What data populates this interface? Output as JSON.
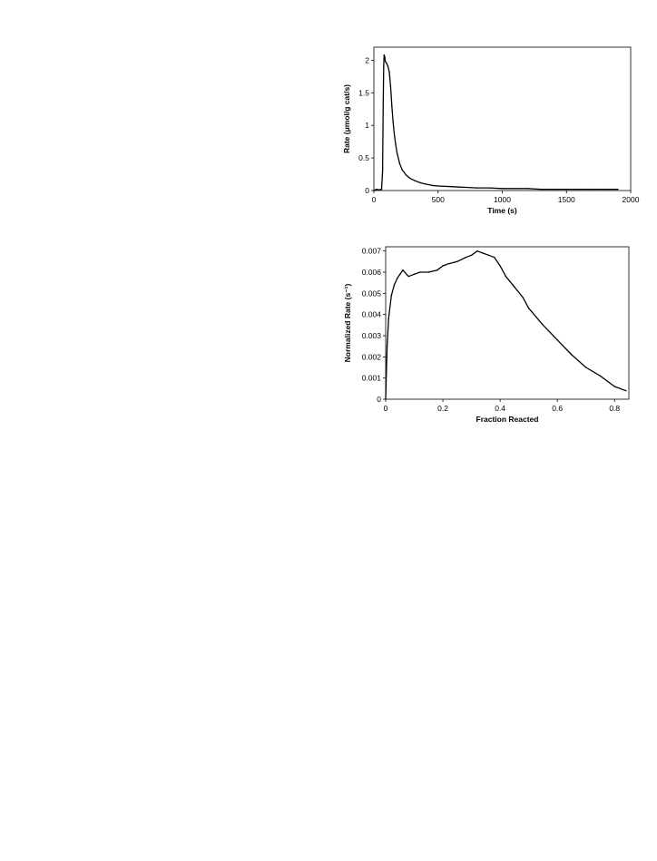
{
  "chart_data": [
    {
      "type": "line",
      "xlabel": "Time (s)",
      "ylabel": "Rate (μmol/g cat/s)",
      "xlim": [
        0,
        2000
      ],
      "ylim": [
        0,
        2.2
      ],
      "xticks": [
        "0",
        "500",
        "1000",
        "1500",
        "2000"
      ],
      "yticks": [
        "0",
        "0.5",
        "1",
        "1.5",
        "2"
      ],
      "grid": false,
      "legend": "none",
      "line_color": "#000000",
      "series": [
        {
          "x": [
            0,
            20,
            40,
            60,
            68,
            72,
            76,
            80,
            85,
            90,
            100,
            110,
            120,
            130,
            140,
            150,
            160,
            170,
            180,
            200,
            220,
            250,
            280,
            320,
            360,
            400,
            450,
            500,
            600,
            700,
            800,
            900,
            1000,
            1100,
            1200,
            1300,
            1400,
            1500,
            1600,
            1700,
            1800,
            1900
          ],
          "y": [
            0.0,
            0.02,
            0.01,
            0.02,
            0.3,
            1.2,
            1.9,
            2.08,
            2.05,
            1.98,
            1.95,
            1.9,
            1.82,
            1.6,
            1.3,
            1.05,
            0.85,
            0.7,
            0.58,
            0.42,
            0.32,
            0.24,
            0.19,
            0.15,
            0.12,
            0.1,
            0.08,
            0.07,
            0.06,
            0.05,
            0.04,
            0.04,
            0.03,
            0.03,
            0.03,
            0.02,
            0.02,
            0.02,
            0.02,
            0.02,
            0.02,
            0.02
          ]
        }
      ]
    },
    {
      "type": "line",
      "xlabel": "Fraction Reacted",
      "ylabel": "Normalized Rate (s⁻¹)",
      "xlim": [
        0,
        0.85
      ],
      "ylim": [
        0,
        0.0072
      ],
      "xticks": [
        "0",
        "0.2",
        "0.4",
        "0.6",
        "0.8"
      ],
      "yticks": [
        "0",
        "0.001",
        "0.002",
        "0.003",
        "0.004",
        "0.005",
        "0.006",
        "0.007"
      ],
      "grid": false,
      "legend": "none",
      "line_color": "#000000",
      "series": [
        {
          "x": [
            0,
            0.005,
            0.01,
            0.02,
            0.03,
            0.04,
            0.05,
            0.06,
            0.08,
            0.1,
            0.12,
            0.15,
            0.18,
            0.2,
            0.22,
            0.25,
            0.28,
            0.3,
            0.32,
            0.34,
            0.36,
            0.38,
            0.4,
            0.42,
            0.45,
            0.48,
            0.5,
            0.55,
            0.6,
            0.65,
            0.7,
            0.75,
            0.8,
            0.84
          ],
          "y": [
            0.0,
            0.0025,
            0.0038,
            0.0049,
            0.0054,
            0.0057,
            0.0059,
            0.0061,
            0.0058,
            0.0059,
            0.006,
            0.006,
            0.0061,
            0.0063,
            0.0064,
            0.0065,
            0.0067,
            0.0068,
            0.007,
            0.0069,
            0.0068,
            0.0067,
            0.0063,
            0.0058,
            0.0053,
            0.0048,
            0.0043,
            0.0035,
            0.0028,
            0.0021,
            0.0015,
            0.0011,
            0.0006,
            0.0004
          ]
        }
      ]
    }
  ]
}
